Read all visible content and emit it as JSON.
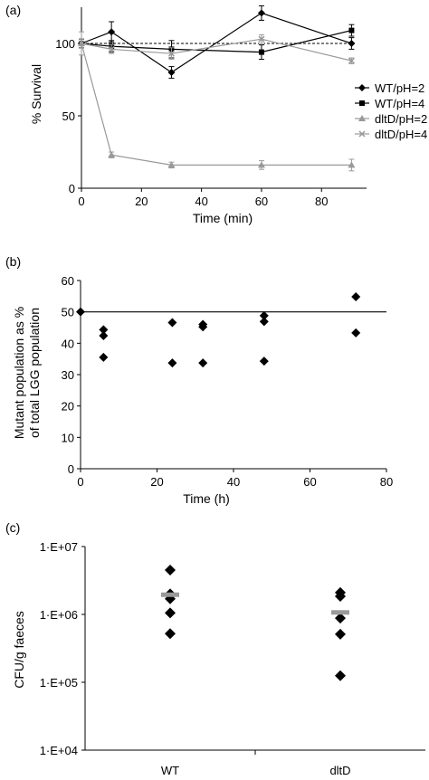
{
  "chart_data": [
    {
      "panel": "(a)",
      "type": "line",
      "xlabel": "Time (min)",
      "ylabel": "% Survival",
      "xlim": [
        0,
        95
      ],
      "ylim": [
        0,
        125
      ],
      "xticks": [
        "0",
        "20",
        "40",
        "60",
        "80"
      ],
      "yticks": [
        "0",
        "50",
        "100"
      ],
      "reference_line": 100,
      "legend_position": "right",
      "series": [
        {
          "name": "WT/pH=2",
          "color": "#000000",
          "marker": "diamond",
          "x": [
            0,
            10,
            30,
            60,
            90
          ],
          "y": [
            100,
            108,
            80,
            121,
            100
          ],
          "err": [
            3,
            7,
            4,
            5,
            4
          ]
        },
        {
          "name": "WT/pH=4",
          "color": "#000000",
          "marker": "square",
          "x": [
            0,
            10,
            30,
            60,
            90
          ],
          "y": [
            100,
            98,
            96,
            94,
            109
          ],
          "err": [
            3,
            4,
            6,
            5,
            4
          ]
        },
        {
          "name": "dltD/pH=2",
          "color": "#999999",
          "marker": "triangle",
          "x": [
            0,
            10,
            30,
            60,
            90
          ],
          "y": [
            100,
            23,
            16,
            16,
            16
          ],
          "err": [
            8,
            2,
            2,
            3,
            4
          ]
        },
        {
          "name": "dltD/pH=4",
          "color": "#999999",
          "marker": "x",
          "x": [
            0,
            10,
            30,
            60,
            90
          ],
          "y": [
            100,
            96,
            93,
            103,
            88
          ],
          "err": [
            3,
            3,
            4,
            3,
            2
          ]
        }
      ]
    },
    {
      "panel": "(b)",
      "type": "scatter",
      "xlabel": "Time (h)",
      "ylabel_lines": [
        "Mutant population as %",
        "of total LGG population"
      ],
      "xlim": [
        0,
        80
      ],
      "ylim": [
        0,
        60
      ],
      "xticks": [
        "0",
        "20",
        "40",
        "60",
        "80"
      ],
      "yticks": [
        "0",
        "10",
        "20",
        "30",
        "40",
        "50",
        "60"
      ],
      "reference_line": 50,
      "points": [
        {
          "x": 0,
          "y": 50
        },
        {
          "x": 6,
          "y": 44.3
        },
        {
          "x": 6,
          "y": 42.4
        },
        {
          "x": 6,
          "y": 35.5
        },
        {
          "x": 24,
          "y": 46.6
        },
        {
          "x": 24,
          "y": 33.7
        },
        {
          "x": 32,
          "y": 46.0
        },
        {
          "x": 32,
          "y": 45.2
        },
        {
          "x": 32,
          "y": 33.7
        },
        {
          "x": 48,
          "y": 48.8
        },
        {
          "x": 48,
          "y": 46.9
        },
        {
          "x": 48,
          "y": 34.3
        },
        {
          "x": 72,
          "y": 54.8
        },
        {
          "x": 72,
          "y": 43.3
        }
      ]
    },
    {
      "panel": "(c)",
      "type": "scatter",
      "ylabel": "CFU/g faeces",
      "yscale": "log",
      "ylim": [
        10000,
        10000000
      ],
      "yticks": [
        "1·E+07",
        "1·E+06",
        "1·E+05",
        "1·E+04"
      ],
      "categories": [
        "WT",
        "dltD"
      ],
      "groups": [
        {
          "category": "WT",
          "values": [
            4500000,
            2000000,
            1700000,
            1050000,
            520000
          ],
          "mean": 1950000
        },
        {
          "category": "dltD",
          "values": [
            2100000,
            1850000,
            880000,
            510000,
            125000
          ],
          "mean": 1070000
        }
      ],
      "mean_color": "#999999"
    }
  ]
}
